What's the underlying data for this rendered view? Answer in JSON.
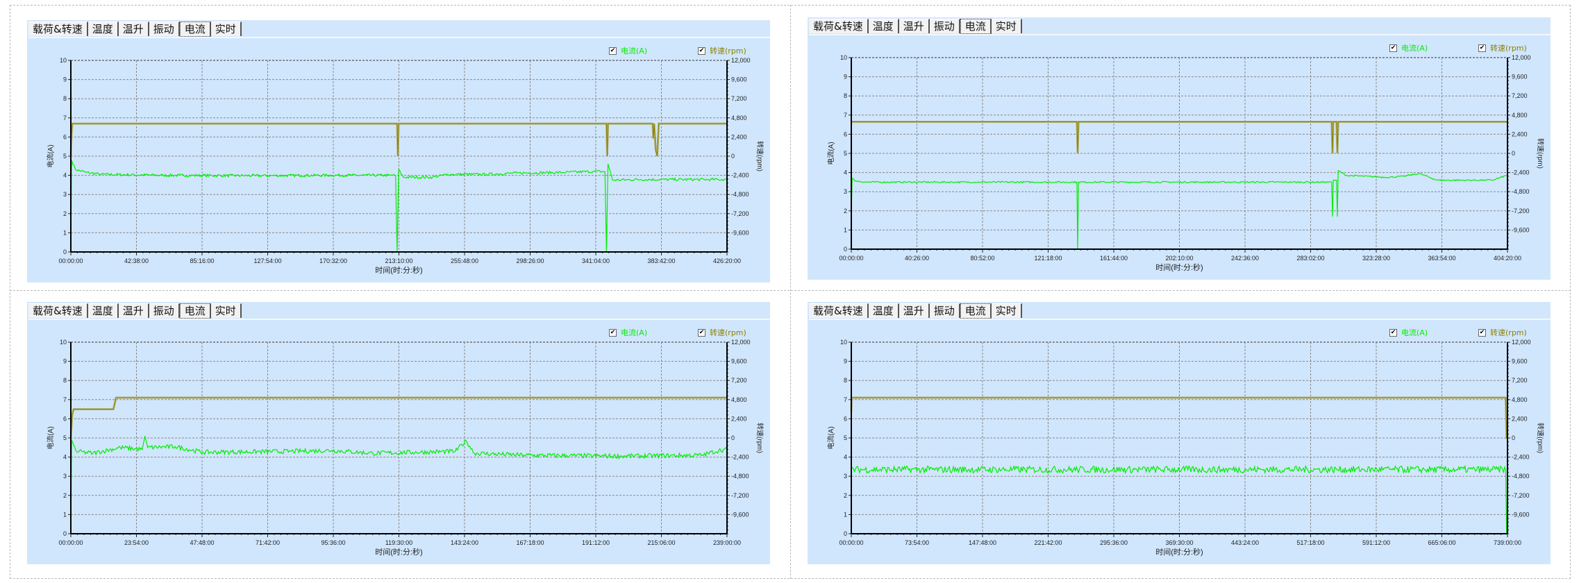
{
  "tabs": [
    "载荷&转速",
    "温度",
    "温升",
    "振动",
    "电流",
    "实时"
  ],
  "active_tab": "电流",
  "legend": {
    "current": "电流(A)",
    "speed": "转速(rpm)"
  },
  "colors": {
    "current": "#00ee00",
    "speed": "#8b8000",
    "speed_band": "#b4b47a",
    "background": "#d0e6fd"
  },
  "chart_data": [
    {
      "type": "line",
      "xlabel": "时间(时:分:秒)",
      "ylabel_left": "电流(A)",
      "ylabel_right": "转速(rpm)",
      "xlim_min": [
        0,
        426.33
      ],
      "ylim_left": [
        0,
        10
      ],
      "ylim_right": [
        -12000,
        12000
      ],
      "x_ticks": [
        "00:00:00",
        "42:38:00",
        "85:16:00",
        "127:54:00",
        "170:32:00",
        "213:10:00",
        "255:48:00",
        "298:26:00",
        "341:04:00",
        "383:42:00",
        "426:20:00"
      ],
      "y_left_ticks": [
        "0",
        "1",
        "2",
        "3",
        "4",
        "5",
        "6",
        "7",
        "8",
        "9",
        "10"
      ],
      "y_right_ticks": [
        "12,000",
        "9,600",
        "7,200",
        "4,800",
        "2,400",
        "0",
        "-2,400",
        "-4,800",
        "-7,200",
        "-9,600"
      ],
      "series": [
        {
          "name": "电流(A)",
          "axis": "left",
          "noise": 0.07,
          "points": [
            [
              0,
              0
            ],
            [
              0.5,
              4.8
            ],
            [
              3,
              4.3
            ],
            [
              10,
              4.15
            ],
            [
              20,
              4.05
            ],
            [
              60,
              4.0
            ],
            [
              120,
              3.98
            ],
            [
              170,
              4.0
            ],
            [
              211,
              4.0
            ],
            [
              212,
              0
            ],
            [
              213,
              4.3
            ],
            [
              216,
              3.9
            ],
            [
              235,
              3.9
            ],
            [
              245,
              4.05
            ],
            [
              270,
              4.05
            ],
            [
              290,
              4.12
            ],
            [
              320,
              4.15
            ],
            [
              340,
              4.2
            ],
            [
              347,
              4.2
            ],
            [
              348,
              0
            ],
            [
              349,
              4.6
            ],
            [
              352,
              3.75
            ],
            [
              370,
              3.78
            ],
            [
              426,
              3.78
            ]
          ]
        },
        {
          "name": "转速(rpm)",
          "axis": "right",
          "noise": 0,
          "points": [
            [
              0,
              0
            ],
            [
              0.5,
              2800
            ],
            [
              1,
              4080
            ],
            [
              212,
              4080
            ],
            [
              212.5,
              0
            ],
            [
              213,
              4080
            ],
            [
              348,
              4080
            ],
            [
              348.5,
              0
            ],
            [
              349,
              4080
            ],
            [
              378,
              4080
            ],
            [
              378.5,
              2200
            ],
            [
              379,
              4080
            ],
            [
              380,
              800
            ],
            [
              381,
              0
            ],
            [
              382,
              4080
            ],
            [
              426,
              4080
            ]
          ]
        }
      ]
    },
    {
      "type": "line",
      "xlabel": "时间(时:分:秒)",
      "ylabel_left": "电流(A)",
      "ylabel_right": "转速(rpm)",
      "xlim_min": [
        0,
        404.33
      ],
      "ylim_left": [
        0,
        10
      ],
      "ylim_right": [
        -12000,
        12000
      ],
      "x_ticks": [
        "00:00:00",
        "40:26:00",
        "80:52:00",
        "121:18:00",
        "161:44:00",
        "202:10:00",
        "242:36:00",
        "283:02:00",
        "323:28:00",
        "363:54:00",
        "404:20:00"
      ],
      "y_left_ticks": [
        "0",
        "1",
        "2",
        "3",
        "4",
        "5",
        "6",
        "7",
        "8",
        "9",
        "10"
      ],
      "y_right_ticks": [
        "12,000",
        "9,600",
        "7,200",
        "4,800",
        "2,400",
        "0",
        "-2,400",
        "-4,800",
        "-7,200",
        "-9,600"
      ],
      "series": [
        {
          "name": "电流(A)",
          "axis": "left",
          "noise": 0.04,
          "points": [
            [
              0,
              1.8
            ],
            [
              0.5,
              3.7
            ],
            [
              3,
              3.55
            ],
            [
              10,
              3.5
            ],
            [
              139,
              3.5
            ],
            [
              139.5,
              0
            ],
            [
              140,
              3.5
            ],
            [
              296,
              3.5
            ],
            [
              296.5,
              1.7
            ],
            [
              297,
              3.6
            ],
            [
              299,
              3.6
            ],
            [
              299.5,
              1.7
            ],
            [
              300,
              4.1
            ],
            [
              305,
              3.85
            ],
            [
              330,
              3.75
            ],
            [
              340,
              3.8
            ],
            [
              350,
              3.95
            ],
            [
              361,
              3.6
            ],
            [
              395,
              3.6
            ],
            [
              404,
              3.85
            ]
          ]
        },
        {
          "name": "转速(rpm)",
          "axis": "right",
          "noise": 0,
          "points": [
            [
              0,
              3960
            ],
            [
              139,
              3960
            ],
            [
              139.5,
              0
            ],
            [
              140,
              3960
            ],
            [
              296,
              3960
            ],
            [
              296.5,
              0
            ],
            [
              297,
              3960
            ],
            [
              299,
              3960
            ],
            [
              299.5,
              0
            ],
            [
              300,
              3960
            ],
            [
              404,
              3960
            ]
          ]
        }
      ]
    },
    {
      "type": "line",
      "xlabel": "时间(时:分:秒)",
      "ylabel_left": "电流(A)",
      "ylabel_right": "转速(rpm)",
      "xlim_min": [
        0,
        239
      ],
      "ylim_left": [
        0,
        10
      ],
      "ylim_right": [
        -12000,
        12000
      ],
      "x_ticks": [
        "00:00:00",
        "23:54:00",
        "47:48:00",
        "71:42:00",
        "95:36:00",
        "119:30:00",
        "143:24:00",
        "167:18:00",
        "191:12:00",
        "215:06:00",
        "239:00:00"
      ],
      "y_left_ticks": [
        "0",
        "1",
        "2",
        "3",
        "4",
        "5",
        "6",
        "7",
        "8",
        "9",
        "10"
      ],
      "y_right_ticks": [
        "12,000",
        "9,600",
        "7,200",
        "4,800",
        "2,400",
        "0",
        "-2,400",
        "-4,800",
        "-7,200",
        "-9,600"
      ],
      "series": [
        {
          "name": "电流(A)",
          "axis": "left",
          "noise": 0.12,
          "points": [
            [
              0,
              0
            ],
            [
              0.3,
              4.9
            ],
            [
              2,
              4.3
            ],
            [
              8,
              4.2
            ],
            [
              18,
              4.5
            ],
            [
              26,
              4.4
            ],
            [
              27,
              5.1
            ],
            [
              28,
              4.5
            ],
            [
              38,
              4.55
            ],
            [
              48,
              4.25
            ],
            [
              80,
              4.3
            ],
            [
              95,
              4.35
            ],
            [
              110,
              4.2
            ],
            [
              140,
              4.3
            ],
            [
              144,
              4.85
            ],
            [
              147,
              4.2
            ],
            [
              165,
              4.1
            ],
            [
              200,
              4.05
            ],
            [
              230,
              4.1
            ],
            [
              236,
              4.35
            ],
            [
              239,
              4.4
            ]
          ]
        },
        {
          "name": "转速(rpm)",
          "axis": "right",
          "noise": 0,
          "points": [
            [
              0,
              0
            ],
            [
              0.5,
              2900
            ],
            [
              1,
              3600
            ],
            [
              15.5,
              3600
            ],
            [
              16.5,
              5040
            ],
            [
              239,
              5040
            ]
          ]
        }
      ]
    },
    {
      "type": "line",
      "xlabel": "时间(时:分:秒)",
      "ylabel_left": "电流(A)",
      "ylabel_right": "转速(rpm)",
      "xlim_min": [
        0,
        739
      ],
      "ylim_left": [
        0,
        10
      ],
      "ylim_right": [
        -12000,
        12000
      ],
      "x_ticks": [
        "00:00:00",
        "73:54:00",
        "147:48:00",
        "221:42:00",
        "295:36:00",
        "369:30:00",
        "443:24:00",
        "517:18:00",
        "591:12:00",
        "665:06:00",
        "739:00:00"
      ],
      "y_left_ticks": [
        "0",
        "1",
        "2",
        "3",
        "4",
        "5",
        "6",
        "7",
        "8",
        "9",
        "10"
      ],
      "y_right_ticks": [
        "12,000",
        "9,600",
        "7,200",
        "4,800",
        "2,400",
        "0",
        "-2,400",
        "-4,800",
        "-7,200",
        "-9,600"
      ],
      "series": [
        {
          "name": "电流(A)",
          "axis": "left",
          "noise": 0.18,
          "points": [
            [
              0,
              3.35
            ],
            [
              737,
              3.35
            ],
            [
              738,
              0
            ],
            [
              739,
              0
            ]
          ]
        },
        {
          "name": "转速(rpm)",
          "axis": "right",
          "noise": 0,
          "points": [
            [
              0,
              3300
            ],
            [
              0.5,
              5040
            ],
            [
              737,
              5040
            ],
            [
              738,
              0
            ],
            [
              739,
              0
            ]
          ]
        }
      ]
    }
  ]
}
